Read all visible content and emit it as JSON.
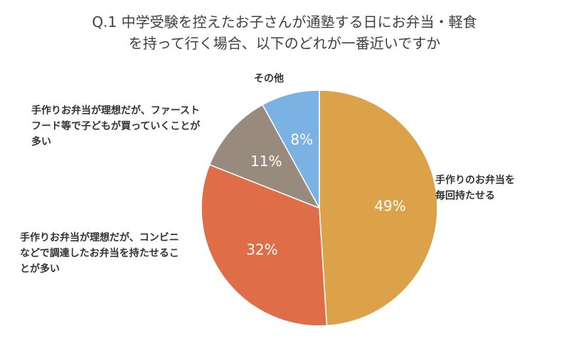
{
  "title_line1": "Q.1 中学受験を控えたお子さんが通塾する日にお弁当・軽食",
  "title_line2": "を持って行く場合、以下のどれが一番近いですか",
  "chart_data": {
    "type": "pie",
    "title": "Q.1 中学受験を控えたお子さんが通塾する日にお弁当・軽食を持って行く場合、以下のどれが一番近いですか",
    "slices": [
      {
        "label_lines": [
          "手作りのお弁当を",
          "毎回持たせる"
        ],
        "value": 49,
        "value_label": "49%",
        "color": "#DBA24A"
      },
      {
        "label_lines": [
          "手作りお弁当が理想だが、コンビニ",
          "などで調達したお弁当を持たせるこ",
          "とが多い"
        ],
        "value": 32,
        "value_label": "32%",
        "color": "#DF6D47"
      },
      {
        "label_lines": [
          "手作りお弁当が理想だが、ファースト",
          "フード等で子どもが買っていくことが",
          "多い"
        ],
        "value": 11,
        "value_label": "11%",
        "color": "#998A7E"
      },
      {
        "label_lines": [
          "その他"
        ],
        "value": 8,
        "value_label": "8%",
        "color": "#7AB3E3"
      }
    ],
    "start": "12 o'clock",
    "direction": "clockwise",
    "legend": "none"
  }
}
